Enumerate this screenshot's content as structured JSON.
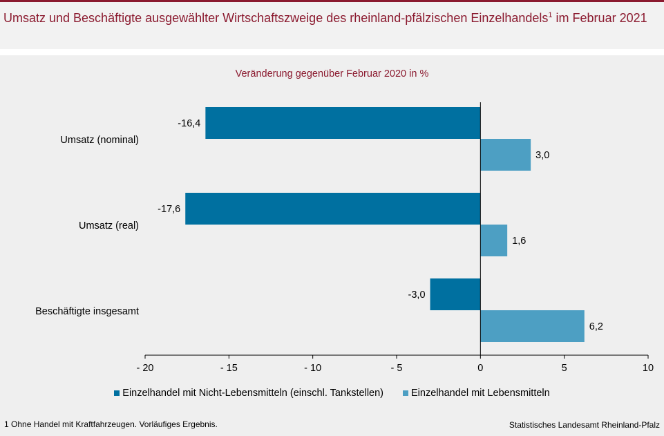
{
  "header": {
    "title": "Umsatz und Beschäftigte ausgewählter Wirtschaftszweige des rheinland-pfälzischen Einzelhandels",
    "title_sup": "1",
    "title_suffix": " im Februar 2021"
  },
  "chart_data": {
    "type": "bar",
    "orientation": "horizontal",
    "subtitle": "Veränderung gegenüber Februar 2020 in %",
    "categories": [
      "Umsatz (nominal)",
      "Umsatz (real)",
      "Beschäftigte insgesamt"
    ],
    "series": [
      {
        "name": "Einzelhandel mit Nicht-Lebensmitteln (einschl. Tankstellen)",
        "color": "#0070a0",
        "values": [
          -16.4,
          -17.6,
          -3.0
        ],
        "labels": [
          "-16,4",
          "-17,6",
          "-3,0"
        ]
      },
      {
        "name": "Einzelhandel mit Lebensmitteln",
        "color": "#4d9fc3",
        "values": [
          3.0,
          1.6,
          6.2
        ],
        "labels": [
          "3,0",
          "1,6",
          "6,2"
        ]
      }
    ],
    "xlim": [
      -20,
      10
    ],
    "xticks": [
      -20,
      -15,
      -10,
      -5,
      0,
      5,
      10
    ],
    "xtick_labels": [
      "- 20",
      "- 15",
      "- 10",
      "- 5",
      "0",
      "5",
      "10"
    ],
    "grid": false,
    "legend_position": "bottom"
  },
  "footnote": "1 Ohne Handel mit Kraftfahrzeugen. Vorläufiges Ergebnis.",
  "source": "Statistisches Landesamt Rheinland-Pfalz"
}
